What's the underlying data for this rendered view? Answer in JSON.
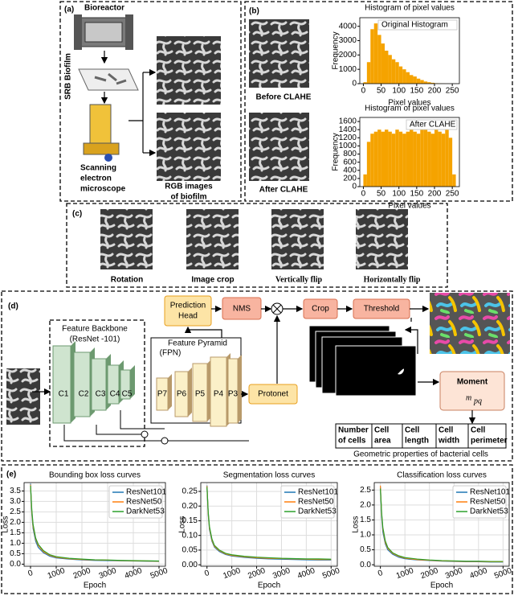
{
  "panel_a": {
    "label": "(a)",
    "bioreactor": "Bioreactor",
    "side_label": "SRB Biofilm",
    "microscope_lines": [
      "Scanning",
      "electron",
      "microscope"
    ],
    "images_lines": [
      "RGB images",
      "of biofilm"
    ]
  },
  "panel_b": {
    "label": "(b)",
    "before": "Before CLAHE",
    "after": "After CLAHE"
  },
  "panel_c": {
    "label": "(c)",
    "captions": [
      "Rotation",
      "Image crop",
      "Vertically flip",
      "Horizontally flip"
    ]
  },
  "panel_d": {
    "label": "(d)",
    "backbone_lines": [
      "Feature Backbone",
      "(ResNet -101)"
    ],
    "pyramid_lines": [
      "Feature Pyramid",
      "(FPN)"
    ],
    "backbone_levels": [
      "C1",
      "C2",
      "C3",
      "C4",
      "C5"
    ],
    "pyramid_levels": [
      "P7",
      "P6",
      "P5",
      "P4",
      "P3"
    ],
    "prediction_head_lines": [
      "Prediction",
      "Head"
    ],
    "nms": "NMS",
    "crop": "Crop",
    "threshold": "Threshold",
    "protonet": "Protonet",
    "moment": "Moment",
    "moment_symbol": "m",
    "moment_subscript": "pq",
    "properties": [
      [
        "Number",
        "of cells"
      ],
      [
        "Cell",
        "area"
      ],
      [
        "Cell",
        "length"
      ],
      [
        "Cell",
        "width"
      ],
      [
        "Cell",
        "perimeter"
      ]
    ],
    "properties_caption": "Geometric properties of bacterial cells"
  },
  "panel_e": {
    "label": "(e)"
  },
  "chart_data": [
    {
      "type": "histogram",
      "title": "Histogram of pixel values",
      "legend_label": "Original Histogram",
      "x_label": "Pixel values",
      "y_label": "Frequency",
      "color": "#f5a300",
      "bins": [
        0,
        10,
        20,
        30,
        40,
        50,
        60,
        70,
        80,
        90,
        100,
        110,
        120,
        130,
        140,
        150,
        160,
        170,
        180,
        190,
        200,
        210,
        220,
        230,
        240,
        250,
        260
      ],
      "counts": [
        100,
        1500,
        3800,
        4200,
        3400,
        2800,
        2300,
        2000,
        1700,
        1500,
        1200,
        1000,
        800,
        600,
        500,
        350,
        250,
        150,
        100,
        60,
        30,
        15,
        8,
        4,
        2,
        1
      ],
      "xlim": [
        -10,
        270
      ],
      "ylim": [
        0,
        4600
      ],
      "xticks": [
        0,
        50,
        100,
        150,
        200,
        250
      ],
      "yticks": [
        0,
        1000,
        2000,
        3000,
        4000
      ],
      "grid": false
    },
    {
      "type": "histogram",
      "title": "Histogram of pixel values",
      "legend_label": "After CLAHE",
      "x_label": "Pixel values",
      "y_label": "Frequency",
      "color": "#f5a300",
      "bins": [
        0,
        10,
        20,
        30,
        40,
        50,
        60,
        70,
        80,
        90,
        100,
        110,
        120,
        130,
        140,
        150,
        160,
        170,
        180,
        190,
        200,
        210,
        220,
        230,
        240,
        250,
        260
      ],
      "counts": [
        300,
        1100,
        1300,
        1350,
        1400,
        1350,
        1400,
        1350,
        1300,
        1400,
        1350,
        1300,
        1350,
        1400,
        1350,
        1300,
        1400,
        1450,
        1350,
        1300,
        1400,
        1350,
        1300,
        1400,
        1200,
        300
      ],
      "xlim": [
        -10,
        270
      ],
      "ylim": [
        0,
        1700
      ],
      "xticks": [
        0,
        50,
        100,
        150,
        200,
        250
      ],
      "yticks": [
        0,
        200,
        400,
        600,
        800,
        1000,
        1200,
        1400,
        1600
      ],
      "grid": false
    },
    {
      "type": "line",
      "title": "Bounding box loss curves",
      "x_label": "Epoch",
      "y_label": "Loss",
      "legend": "upper right",
      "grid": true,
      "x": [
        0,
        50,
        100,
        200,
        300,
        500,
        750,
        1000,
        1500,
        2000,
        2500,
        3000,
        3500,
        4000,
        4500,
        5000
      ],
      "xlim": [
        -250,
        5250
      ],
      "ylim": [
        -0.1,
        3.9
      ],
      "xticks": [
        0,
        1000,
        2000,
        3000,
        4000,
        5000
      ],
      "yticks": [
        {
          "value": 0,
          "label": "0.0"
        },
        0.5,
        {
          "value": 1,
          "label": "1.0"
        },
        1.5,
        {
          "value": 2,
          "label": "2.0"
        },
        2.5,
        {
          "value": 3,
          "label": "3.0"
        },
        3.5
      ],
      "series": [
        {
          "name": "ResNet101",
          "color": "#1f77b4",
          "values": [
            3.85,
            2.4,
            1.7,
            1.1,
            0.8,
            0.55,
            0.38,
            0.3,
            0.24,
            0.2,
            0.18,
            0.17,
            0.16,
            0.15,
            0.14,
            0.13
          ]
        },
        {
          "name": "ResNet50",
          "color": "#ff7f0e",
          "values": [
            3.8,
            2.5,
            1.8,
            1.2,
            0.9,
            0.6,
            0.42,
            0.33,
            0.26,
            0.22,
            0.2,
            0.19,
            0.17,
            0.16,
            0.15,
            0.14
          ]
        },
        {
          "name": "DarkNet53",
          "color": "#2ca02c",
          "values": [
            3.75,
            2.6,
            1.9,
            1.25,
            0.95,
            0.65,
            0.45,
            0.36,
            0.28,
            0.24,
            0.21,
            0.2,
            0.18,
            0.17,
            0.16,
            0.15
          ]
        }
      ]
    },
    {
      "type": "line",
      "title": "Segmentation loss curves",
      "x_label": "Epoch",
      "y_label": "Loss",
      "legend": "upper right",
      "grid": true,
      "x": [
        0,
        50,
        100,
        200,
        300,
        500,
        750,
        1000,
        1500,
        2000,
        2500,
        3000,
        3500,
        4000,
        4500,
        5000
      ],
      "xlim": [
        -250,
        5250
      ],
      "ylim": [
        -0.005,
        0.28
      ],
      "xticks": [
        0,
        1000,
        2000,
        3000,
        4000,
        5000
      ],
      "yticks": [
        {
          "value": 0,
          "label": "0.00"
        },
        0.05,
        {
          "value": 0.1,
          "label": "0.10"
        },
        0.15,
        {
          "value": 0.2,
          "label": "0.20"
        },
        0.25
      ],
      "series": [
        {
          "name": "ResNet101",
          "color": "#1f77b4",
          "values": [
            0.27,
            0.17,
            0.12,
            0.08,
            0.06,
            0.045,
            0.035,
            0.03,
            0.025,
            0.022,
            0.02,
            0.019,
            0.018,
            0.017,
            0.016,
            0.016
          ]
        },
        {
          "name": "ResNet50",
          "color": "#ff7f0e",
          "values": [
            0.268,
            0.175,
            0.125,
            0.084,
            0.063,
            0.048,
            0.037,
            0.032,
            0.027,
            0.024,
            0.022,
            0.021,
            0.02,
            0.019,
            0.018,
            0.018
          ]
        },
        {
          "name": "DarkNet53",
          "color": "#2ca02c",
          "values": [
            0.265,
            0.18,
            0.13,
            0.088,
            0.066,
            0.05,
            0.039,
            0.034,
            0.029,
            0.026,
            0.024,
            0.022,
            0.021,
            0.02,
            0.02,
            0.019
          ]
        }
      ]
    },
    {
      "type": "line",
      "title": "Classification loss curves",
      "x_label": "Epoch",
      "y_label": "Loss",
      "legend": "upper right",
      "grid": true,
      "x": [
        0,
        50,
        100,
        200,
        300,
        500,
        750,
        1000,
        1500,
        2000,
        2500,
        3000,
        3500,
        4000,
        4500,
        5000
      ],
      "xlim": [
        -250,
        5250
      ],
      "ylim": [
        -0.05,
        2.75
      ],
      "xticks": [
        0,
        1000,
        2000,
        3000,
        4000,
        5000
      ],
      "yticks": [
        {
          "value": 0,
          "label": "0.0"
        },
        0.5,
        {
          "value": 1,
          "label": "1.0"
        },
        1.5,
        {
          "value": 2,
          "label": "2.0"
        },
        2.5
      ],
      "series": [
        {
          "name": "ResNet101",
          "color": "#1f77b4",
          "values": [
            2.6,
            1.6,
            1.1,
            0.7,
            0.5,
            0.35,
            0.25,
            0.2,
            0.16,
            0.14,
            0.12,
            0.11,
            0.1,
            0.1,
            0.09,
            0.09
          ]
        },
        {
          "name": "ResNet50",
          "color": "#ff7f0e",
          "values": [
            2.65,
            1.7,
            1.2,
            0.75,
            0.55,
            0.38,
            0.28,
            0.22,
            0.17,
            0.15,
            0.13,
            0.12,
            0.11,
            0.11,
            0.1,
            0.1
          ]
        },
        {
          "name": "DarkNet53",
          "color": "#2ca02c",
          "values": [
            2.55,
            1.75,
            1.25,
            0.8,
            0.58,
            0.4,
            0.3,
            0.24,
            0.19,
            0.16,
            0.14,
            0.13,
            0.12,
            0.12,
            0.11,
            0.11
          ]
        }
      ]
    }
  ]
}
